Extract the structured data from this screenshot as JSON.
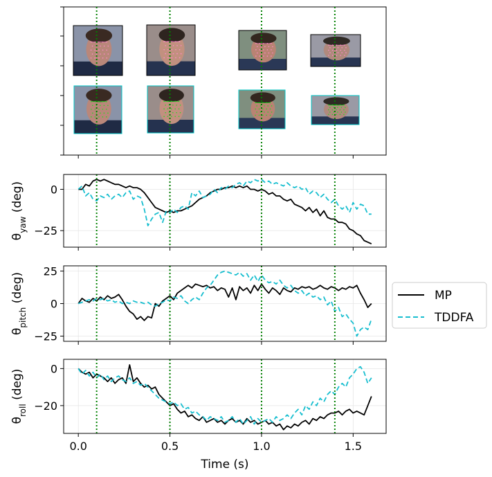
{
  "figure": {
    "x_axis_label": "Time (s)",
    "x_ticks": [
      "0.0",
      "0.5",
      "1.0",
      "1.5"
    ],
    "event_times": [
      0.1,
      0.5,
      1.0,
      1.4
    ],
    "colors": {
      "mp": "#000000",
      "tddfa": "#17becf",
      "event_line": "#008000",
      "grid": "#e6e6e6",
      "landmark_top": "#ff88cc",
      "landmark_bottom": "#22dd22",
      "thumb_border_top": "#000000",
      "thumb_border_bottom": "#00c8c8"
    }
  },
  "legend": {
    "entries": [
      {
        "label": "MP",
        "style": "solid",
        "color": "#000000"
      },
      {
        "label": "TDDFA",
        "style": "dashed",
        "color": "#17becf"
      }
    ]
  },
  "image_panel": {
    "top_row_landmark": "face-landmark-mesh",
    "bottom_row_landmark": "face-landmark-mesh",
    "frames": [
      {
        "time": 0.1,
        "skin": "#b9877a",
        "hair": "#3a2a22",
        "bg": "#8a93a8",
        "shirt": "#1f2a44"
      },
      {
        "time": 0.5,
        "skin": "#c2907f",
        "hair": "#2e241f",
        "bg": "#9a8d8a",
        "shirt": "#25324f"
      },
      {
        "time": 1.0,
        "skin": "#b98373",
        "hair": "#33271f",
        "bg": "#7f8f7f",
        "shirt": "#2a3856"
      },
      {
        "time": 1.4,
        "skin": "#b0897d",
        "hair": "#2f2a25",
        "bg": "#9a9aa5",
        "shirt": "#283552"
      }
    ]
  },
  "chart_data": [
    {
      "type": "line",
      "ylabel": "θ_yaw (deg)",
      "ylabel_base": "θ",
      "ylabel_sub": "yaw",
      "ylabel_unit": " (deg)",
      "yticks": [
        0,
        -25
      ],
      "ylim": [
        -35,
        9
      ],
      "xlim": [
        -0.08,
        1.68
      ],
      "grid": true,
      "series": [
        {
          "name": "MP",
          "x": [
            0.0,
            0.02,
            0.04,
            0.06,
            0.08,
            0.1,
            0.12,
            0.14,
            0.16,
            0.18,
            0.2,
            0.22,
            0.24,
            0.26,
            0.28,
            0.3,
            0.32,
            0.34,
            0.36,
            0.38,
            0.4,
            0.42,
            0.44,
            0.46,
            0.48,
            0.5,
            0.52,
            0.54,
            0.56,
            0.58,
            0.6,
            0.62,
            0.64,
            0.66,
            0.68,
            0.7,
            0.72,
            0.74,
            0.76,
            0.78,
            0.8,
            0.82,
            0.84,
            0.86,
            0.88,
            0.9,
            0.92,
            0.94,
            0.96,
            0.98,
            1.0,
            1.02,
            1.04,
            1.06,
            1.08,
            1.1,
            1.12,
            1.14,
            1.16,
            1.18,
            1.2,
            1.22,
            1.24,
            1.26,
            1.28,
            1.3,
            1.32,
            1.34,
            1.36,
            1.38,
            1.4,
            1.42,
            1.44,
            1.46,
            1.48,
            1.5,
            1.52,
            1.54,
            1.56,
            1.58,
            1.6
          ],
          "values": [
            0,
            0,
            3,
            2,
            5,
            6,
            5,
            6,
            5,
            4,
            3,
            3,
            2,
            1,
            2,
            1,
            1,
            0,
            -2,
            -5,
            -8,
            -11,
            -12,
            -13,
            -14,
            -13,
            -14,
            -13,
            -13,
            -12,
            -11,
            -10,
            -8,
            -6,
            -5,
            -4,
            -2,
            -1,
            0,
            0,
            1,
            1,
            2,
            1,
            2,
            1,
            2,
            0,
            0,
            -1,
            0,
            -1,
            -3,
            -2,
            -4,
            -4,
            -6,
            -7,
            -6,
            -9,
            -10,
            -11,
            -13,
            -11,
            -14,
            -12,
            -16,
            -13,
            -17,
            -18,
            -18,
            -20,
            -20,
            -21,
            -24,
            -25,
            -27,
            -28,
            -31,
            -32,
            -33
          ]
        },
        {
          "name": "TDDFA",
          "x": [
            0.0,
            0.02,
            0.04,
            0.06,
            0.08,
            0.1,
            0.12,
            0.14,
            0.16,
            0.18,
            0.2,
            0.22,
            0.24,
            0.26,
            0.28,
            0.3,
            0.32,
            0.34,
            0.36,
            0.38,
            0.4,
            0.42,
            0.44,
            0.46,
            0.48,
            0.5,
            0.52,
            0.54,
            0.56,
            0.58,
            0.6,
            0.62,
            0.64,
            0.66,
            0.68,
            0.7,
            0.72,
            0.74,
            0.76,
            0.78,
            0.8,
            0.82,
            0.84,
            0.86,
            0.88,
            0.9,
            0.92,
            0.94,
            0.96,
            0.98,
            1.0,
            1.02,
            1.04,
            1.06,
            1.08,
            1.1,
            1.12,
            1.14,
            1.16,
            1.18,
            1.2,
            1.22,
            1.24,
            1.26,
            1.28,
            1.3,
            1.32,
            1.34,
            1.36,
            1.38,
            1.4,
            1.42,
            1.44,
            1.46,
            1.48,
            1.5,
            1.52,
            1.54,
            1.56,
            1.58,
            1.6
          ],
          "values": [
            0,
            2,
            -4,
            -2,
            -6,
            -7,
            -4,
            -5,
            -3,
            -6,
            -4,
            -3,
            -5,
            -2,
            -1,
            -6,
            -4,
            -5,
            -12,
            -22,
            -18,
            -15,
            -14,
            -20,
            -13,
            -14,
            -12,
            -14,
            -11,
            -10,
            -12,
            -2,
            -4,
            -1,
            -5,
            -4,
            -3,
            0,
            -2,
            1,
            0,
            2,
            1,
            3,
            4,
            2,
            5,
            4,
            6,
            5,
            6,
            4,
            5,
            3,
            4,
            3,
            2,
            4,
            2,
            1,
            2,
            0,
            1,
            -3,
            -1,
            -2,
            -5,
            -3,
            -6,
            -8,
            -6,
            -10,
            -12,
            -10,
            -14,
            -8,
            -12,
            -9,
            -10,
            -15,
            -15
          ]
        }
      ]
    },
    {
      "type": "line",
      "ylabel": "θ_pitch (deg)",
      "ylabel_base": "θ",
      "ylabel_sub": "pitch",
      "ylabel_unit": " (deg)",
      "yticks": [
        25,
        0,
        -25
      ],
      "ylim": [
        -29,
        29
      ],
      "xlim": [
        -0.08,
        1.68
      ],
      "grid": true,
      "series": [
        {
          "name": "MP",
          "x": [
            0.0,
            0.02,
            0.04,
            0.06,
            0.08,
            0.1,
            0.12,
            0.14,
            0.16,
            0.18,
            0.2,
            0.22,
            0.24,
            0.26,
            0.28,
            0.3,
            0.32,
            0.34,
            0.36,
            0.38,
            0.4,
            0.42,
            0.44,
            0.46,
            0.48,
            0.5,
            0.52,
            0.54,
            0.56,
            0.58,
            0.6,
            0.62,
            0.64,
            0.66,
            0.68,
            0.7,
            0.72,
            0.74,
            0.76,
            0.78,
            0.8,
            0.82,
            0.84,
            0.86,
            0.88,
            0.9,
            0.92,
            0.94,
            0.96,
            0.98,
            1.0,
            1.02,
            1.04,
            1.06,
            1.08,
            1.1,
            1.12,
            1.14,
            1.16,
            1.18,
            1.2,
            1.22,
            1.24,
            1.26,
            1.28,
            1.3,
            1.32,
            1.34,
            1.36,
            1.38,
            1.4,
            1.42,
            1.44,
            1.46,
            1.48,
            1.5,
            1.52,
            1.54,
            1.56,
            1.58,
            1.6
          ],
          "values": [
            0,
            4,
            2,
            1,
            4,
            2,
            5,
            3,
            6,
            4,
            5,
            7,
            3,
            -2,
            -6,
            -8,
            -12,
            -10,
            -13,
            -10,
            -11,
            0,
            -2,
            2,
            4,
            6,
            3,
            8,
            10,
            12,
            14,
            12,
            15,
            14,
            13,
            14,
            12,
            13,
            10,
            12,
            11,
            5,
            12,
            3,
            13,
            10,
            12,
            8,
            14,
            10,
            15,
            11,
            8,
            12,
            10,
            7,
            12,
            10,
            9,
            12,
            11,
            13,
            12,
            13,
            11,
            12,
            14,
            12,
            11,
            13,
            12,
            10,
            12,
            11,
            13,
            12,
            14,
            8,
            3,
            -3,
            0
          ]
        },
        {
          "name": "TDDFA",
          "x": [
            0.0,
            0.02,
            0.04,
            0.06,
            0.08,
            0.1,
            0.12,
            0.14,
            0.16,
            0.18,
            0.2,
            0.22,
            0.24,
            0.26,
            0.28,
            0.3,
            0.32,
            0.34,
            0.36,
            0.38,
            0.4,
            0.42,
            0.44,
            0.46,
            0.48,
            0.5,
            0.52,
            0.54,
            0.56,
            0.58,
            0.6,
            0.62,
            0.64,
            0.66,
            0.68,
            0.7,
            0.72,
            0.74,
            0.76,
            0.78,
            0.8,
            0.82,
            0.84,
            0.86,
            0.88,
            0.9,
            0.92,
            0.94,
            0.96,
            0.98,
            1.0,
            1.02,
            1.04,
            1.06,
            1.08,
            1.1,
            1.12,
            1.14,
            1.16,
            1.18,
            1.2,
            1.22,
            1.24,
            1.26,
            1.28,
            1.3,
            1.32,
            1.34,
            1.36,
            1.38,
            1.4,
            1.42,
            1.44,
            1.46,
            1.48,
            1.5,
            1.52,
            1.54,
            1.56,
            1.58,
            1.6
          ],
          "values": [
            0,
            1,
            2,
            3,
            2,
            4,
            3,
            4,
            2,
            3,
            1,
            2,
            0,
            1,
            0,
            2,
            1,
            1,
            0,
            1,
            -1,
            -2,
            0,
            1,
            3,
            2,
            5,
            4,
            6,
            2,
            0,
            3,
            5,
            3,
            8,
            12,
            14,
            18,
            22,
            24,
            25,
            24,
            23,
            22,
            24,
            21,
            23,
            18,
            22,
            17,
            22,
            18,
            16,
            17,
            15,
            18,
            14,
            12,
            14,
            10,
            8,
            10,
            6,
            8,
            5,
            6,
            3,
            5,
            -1,
            2,
            -6,
            -3,
            -10,
            -8,
            -12,
            -15,
            -25,
            -20,
            -18,
            -20,
            -12
          ]
        }
      ]
    },
    {
      "type": "line",
      "ylabel": "θ_roll (deg)",
      "ylabel_base": "θ",
      "ylabel_sub": "roll",
      "ylabel_unit": " (deg)",
      "yticks": [
        0,
        -20
      ],
      "ylim": [
        -35,
        5
      ],
      "xlim": [
        -0.08,
        1.68
      ],
      "grid": true,
      "series": [
        {
          "name": "MP",
          "x": [
            0.0,
            0.02,
            0.04,
            0.06,
            0.08,
            0.1,
            0.12,
            0.14,
            0.16,
            0.18,
            0.2,
            0.22,
            0.24,
            0.26,
            0.28,
            0.3,
            0.32,
            0.34,
            0.36,
            0.38,
            0.4,
            0.42,
            0.44,
            0.46,
            0.48,
            0.5,
            0.52,
            0.54,
            0.56,
            0.58,
            0.6,
            0.62,
            0.64,
            0.66,
            0.68,
            0.7,
            0.72,
            0.74,
            0.76,
            0.78,
            0.8,
            0.82,
            0.84,
            0.86,
            0.88,
            0.9,
            0.92,
            0.94,
            0.96,
            0.98,
            1.0,
            1.02,
            1.04,
            1.06,
            1.08,
            1.1,
            1.12,
            1.14,
            1.16,
            1.18,
            1.2,
            1.22,
            1.24,
            1.26,
            1.28,
            1.3,
            1.32,
            1.34,
            1.36,
            1.38,
            1.4,
            1.42,
            1.44,
            1.46,
            1.48,
            1.5,
            1.52,
            1.54,
            1.56,
            1.58,
            1.6
          ],
          "values": [
            0,
            -2,
            -3,
            -2,
            -5,
            -3,
            -4,
            -5,
            -7,
            -5,
            -8,
            -6,
            -5,
            -8,
            2,
            -7,
            -5,
            -8,
            -10,
            -9,
            -11,
            -10,
            -14,
            -16,
            -18,
            -20,
            -19,
            -22,
            -24,
            -23,
            -26,
            -25,
            -27,
            -28,
            -26,
            -29,
            -28,
            -27,
            -29,
            -28,
            -30,
            -28,
            -27,
            -29,
            -28,
            -30,
            -27,
            -29,
            -28,
            -30,
            -29,
            -28,
            -30,
            -29,
            -31,
            -30,
            -33,
            -31,
            -32,
            -30,
            -31,
            -29,
            -28,
            -30,
            -27,
            -28,
            -26,
            -27,
            -25,
            -24,
            -24,
            -23,
            -25,
            -23,
            -22,
            -24,
            -23,
            -24,
            -25,
            -20,
            -15
          ]
        },
        {
          "name": "TDDFA",
          "x": [
            0.0,
            0.02,
            0.04,
            0.06,
            0.08,
            0.1,
            0.12,
            0.14,
            0.16,
            0.18,
            0.2,
            0.22,
            0.24,
            0.26,
            0.28,
            0.3,
            0.32,
            0.34,
            0.36,
            0.38,
            0.4,
            0.42,
            0.44,
            0.46,
            0.48,
            0.5,
            0.52,
            0.54,
            0.56,
            0.58,
            0.6,
            0.62,
            0.64,
            0.66,
            0.68,
            0.7,
            0.72,
            0.74,
            0.76,
            0.78,
            0.8,
            0.82,
            0.84,
            0.86,
            0.88,
            0.9,
            0.92,
            0.94,
            0.96,
            0.98,
            1.0,
            1.02,
            1.04,
            1.06,
            1.08,
            1.1,
            1.12,
            1.14,
            1.16,
            1.18,
            1.2,
            1.22,
            1.24,
            1.26,
            1.28,
            1.3,
            1.32,
            1.34,
            1.36,
            1.38,
            1.4,
            1.42,
            1.44,
            1.46,
            1.48,
            1.5,
            1.52,
            1.54,
            1.56,
            1.58,
            1.6
          ],
          "values": [
            0,
            -3,
            -1,
            -4,
            -2,
            -5,
            -3,
            -6,
            -4,
            -7,
            -5,
            -4,
            -6,
            -7,
            -5,
            -8,
            -7,
            -9,
            -8,
            -10,
            -12,
            -14,
            -16,
            -17,
            -18,
            -19,
            -18,
            -20,
            -19,
            -22,
            -21,
            -24,
            -23,
            -25,
            -26,
            -28,
            -26,
            -27,
            -28,
            -26,
            -29,
            -28,
            -26,
            -29,
            -27,
            -30,
            -28,
            -26,
            -30,
            -27,
            -29,
            -28,
            -27,
            -29,
            -26,
            -28,
            -27,
            -25,
            -27,
            -24,
            -22,
            -25,
            -20,
            -22,
            -18,
            -20,
            -16,
            -18,
            -14,
            -12,
            -14,
            -10,
            -8,
            -10,
            -5,
            -3,
            0,
            1,
            -2,
            -8,
            -5
          ]
        }
      ]
    }
  ]
}
